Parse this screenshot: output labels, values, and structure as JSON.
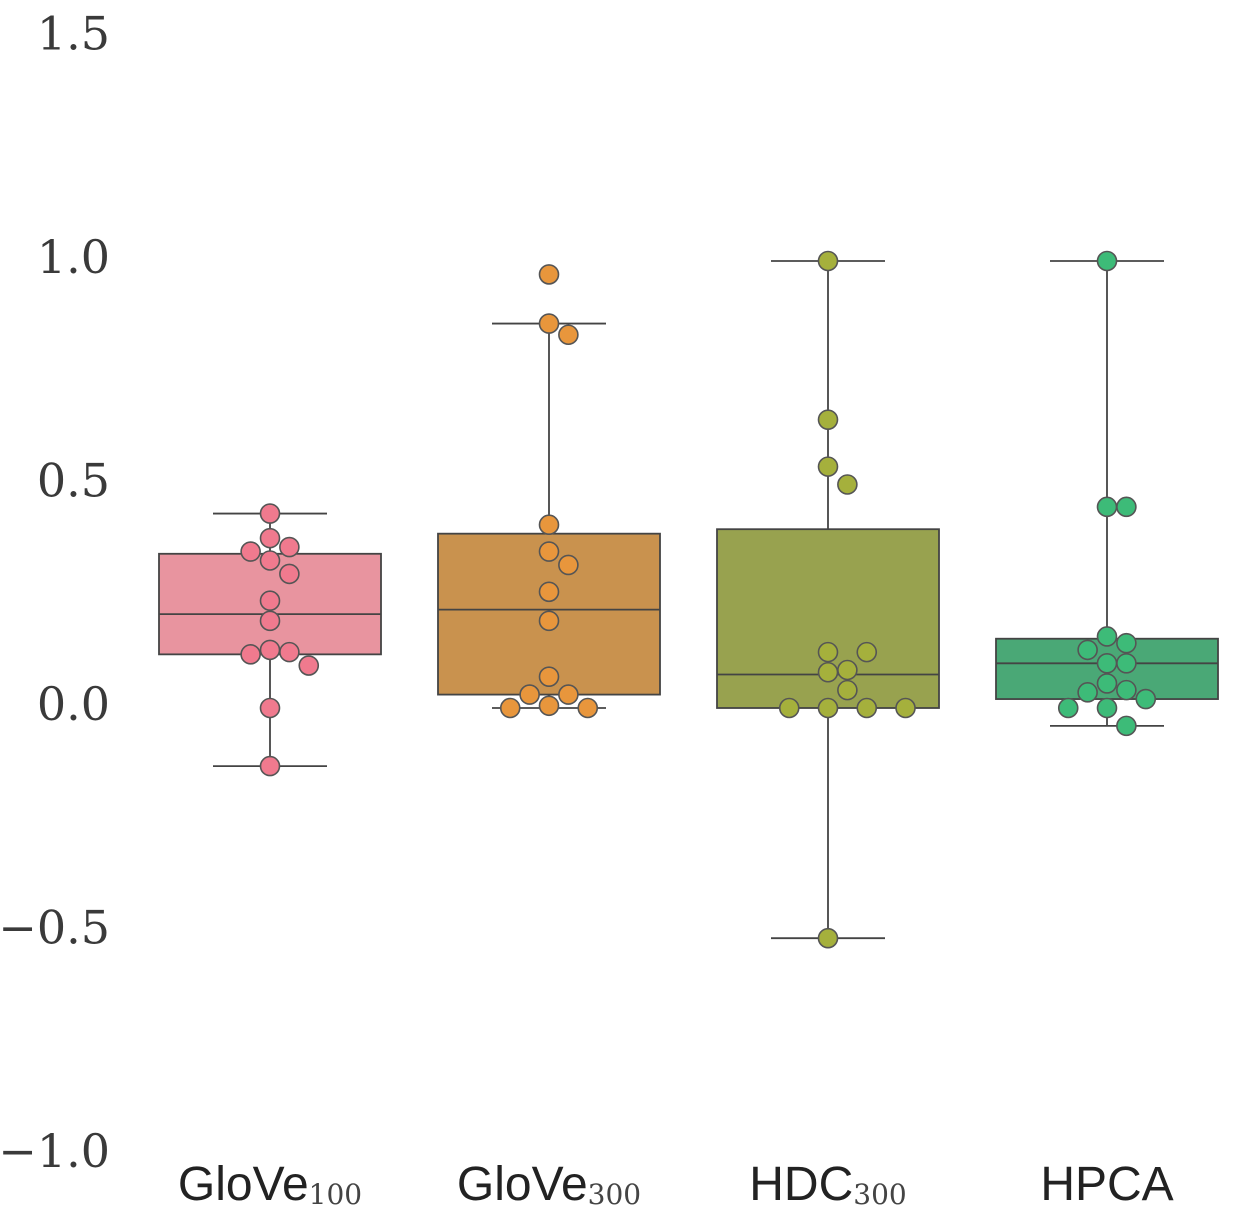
{
  "chart_data": {
    "type": "box",
    "title": "",
    "xlabel": "",
    "ylabel": "",
    "ylim": [
      -1.0,
      1.5
    ],
    "yticks": [
      {
        "value": -1.0,
        "label": "−1.0"
      },
      {
        "value": -0.5,
        "label": "−0.5"
      },
      {
        "value": 0.0,
        "label": "0.0"
      },
      {
        "value": 0.5,
        "label": "0.5"
      },
      {
        "value": 1.0,
        "label": "1.0"
      },
      {
        "value": 1.5,
        "label": "1.5"
      }
    ],
    "grid": false,
    "categories": [
      {
        "label": "GloVe",
        "sub": "100"
      },
      {
        "label": "GloVe",
        "sub": "300"
      },
      {
        "label": "HDC",
        "sub": "300"
      },
      {
        "label": "HPCA",
        "sub": ""
      }
    ],
    "series": [
      {
        "color": "#e8949f",
        "point_color": "#f07a8e",
        "box": {
          "q1": 0.12,
          "median": 0.21,
          "q3": 0.345,
          "whisker_low": -0.13,
          "whisker_high": 0.435
        },
        "points": [
          0.435,
          0.38,
          0.36,
          0.35,
          0.33,
          0.3,
          0.24,
          0.195,
          0.13,
          0.12,
          0.125,
          0.095,
          0.0,
          -0.13
        ]
      },
      {
        "color": "#c9924e",
        "point_color": "#e8963c",
        "box": {
          "q1": 0.03,
          "median": 0.22,
          "q3": 0.39,
          "whisker_low": 0.0,
          "whisker_high": 0.86
        },
        "points": [
          0.97,
          0.86,
          0.835,
          0.41,
          0.35,
          0.32,
          0.26,
          0.195,
          0.07,
          0.03,
          0.03,
          0.005,
          0.0,
          0.0
        ]
      },
      {
        "color": "#98a24f",
        "point_color": "#a5b03c",
        "box": {
          "q1": 0.0,
          "median": 0.075,
          "q3": 0.4,
          "whisker_low": -0.515,
          "whisker_high": 1.0
        },
        "points": [
          1.0,
          0.645,
          0.54,
          0.5,
          0.125,
          0.125,
          0.085,
          0.08,
          0.04,
          0.0,
          0.0,
          0.0,
          0.0,
          -0.515
        ]
      },
      {
        "color": "#4aa876",
        "point_color": "#3dbb78",
        "box": {
          "q1": 0.02,
          "median": 0.1,
          "q3": 0.155,
          "whisker_low": -0.04,
          "whisker_high": 1.0
        },
        "points": [
          1.0,
          0.45,
          0.45,
          0.16,
          0.145,
          0.13,
          0.1,
          0.1,
          0.055,
          0.04,
          0.035,
          0.02,
          0.0,
          0.0,
          -0.04
        ]
      }
    ]
  }
}
